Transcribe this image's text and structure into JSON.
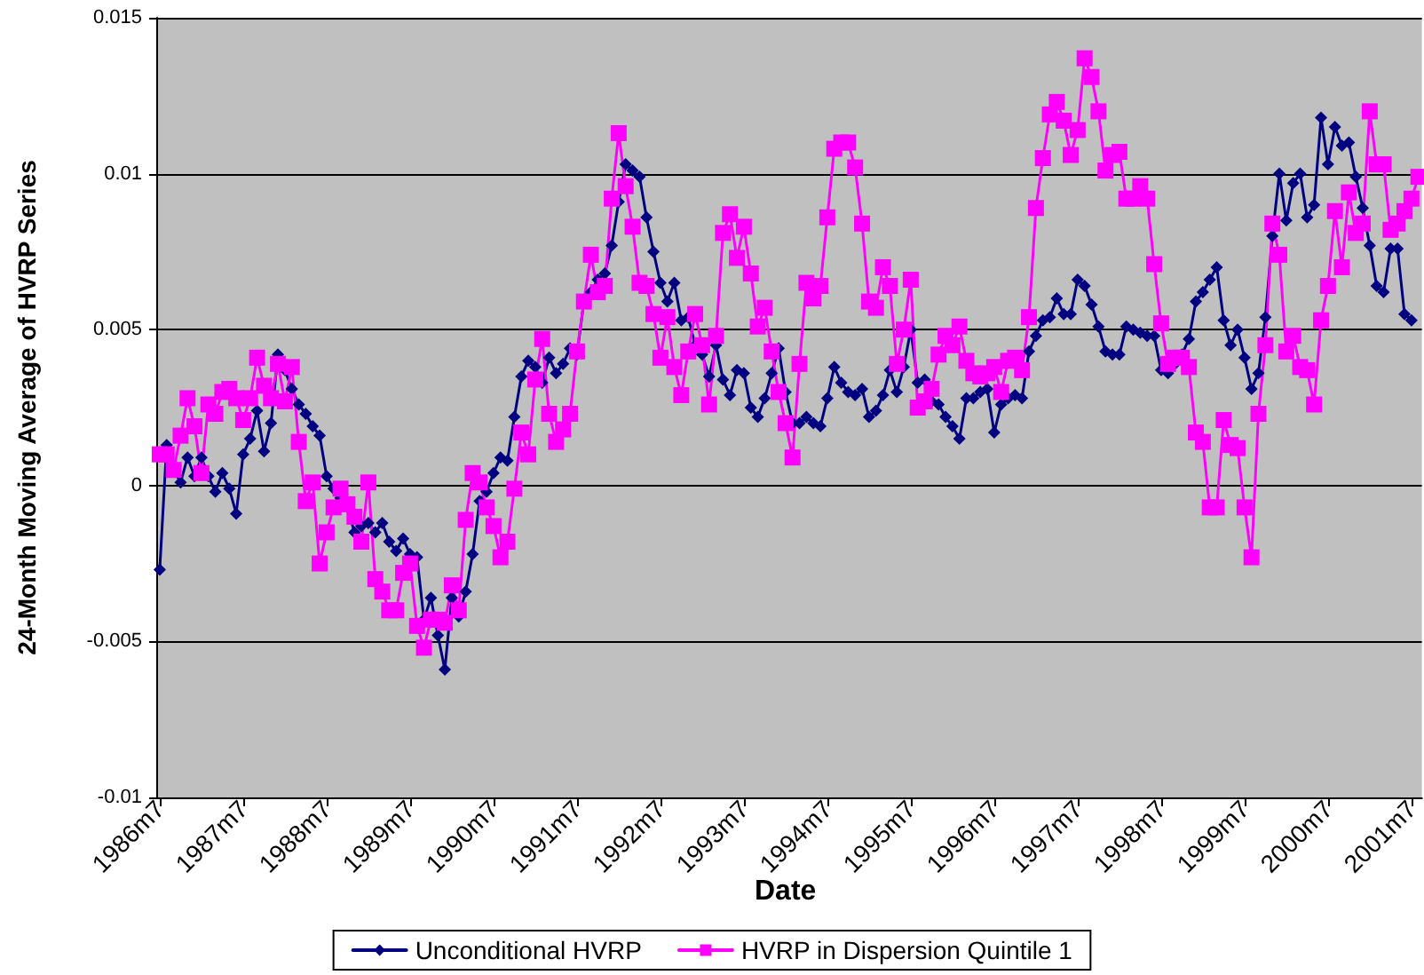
{
  "chart_data": {
    "type": "line",
    "xlabel": "Date",
    "ylabel": "24-Month Moving Average of HVRP Series",
    "categories": [
      "1986m7",
      null,
      null,
      null,
      null,
      null,
      null,
      null,
      null,
      null,
      null,
      null,
      "1987m7",
      null,
      null,
      null,
      null,
      null,
      null,
      null,
      null,
      null,
      null,
      null,
      "1988m7",
      null,
      null,
      null,
      null,
      null,
      null,
      null,
      null,
      null,
      null,
      null,
      "1989m7",
      null,
      null,
      null,
      null,
      null,
      null,
      null,
      null,
      null,
      null,
      null,
      "1990m7",
      null,
      null,
      null,
      null,
      null,
      null,
      null,
      null,
      null,
      null,
      null,
      "1991m7",
      null,
      null,
      null,
      null,
      null,
      null,
      null,
      null,
      null,
      null,
      null,
      "1992m7",
      null,
      null,
      null,
      null,
      null,
      null,
      null,
      null,
      null,
      null,
      null,
      "1993m7",
      null,
      null,
      null,
      null,
      null,
      null,
      null,
      null,
      null,
      null,
      null,
      "1994m7",
      null,
      null,
      null,
      null,
      null,
      null,
      null,
      null,
      null,
      null,
      null,
      "1995m7",
      null,
      null,
      null,
      null,
      null,
      null,
      null,
      null,
      null,
      null,
      null,
      "1996m7",
      null,
      null,
      null,
      null,
      null,
      null,
      null,
      null,
      null,
      null,
      null,
      "1997m7",
      null,
      null,
      null,
      null,
      null,
      null,
      null,
      null,
      null,
      null,
      null,
      "1998m7",
      null,
      null,
      null,
      null,
      null,
      null,
      null,
      null,
      null,
      null,
      null,
      "1999m7",
      null,
      null,
      null,
      null,
      null,
      null,
      null,
      null,
      null,
      null,
      null,
      "2000m7",
      null,
      null,
      null,
      null,
      null,
      null,
      null,
      null,
      null,
      null,
      null,
      "2001m7",
      null
    ],
    "ylim": [
      -0.01,
      0.015
    ],
    "yticks": [
      -0.01,
      -0.005,
      0,
      0.005,
      0.01,
      0.015
    ],
    "grid": "y",
    "legend": "bottom",
    "line_style": "solid",
    "series": [
      {
        "name": "Unconditional HVRP",
        "color": "#000080",
        "marker": "diamond",
        "values": [
          -0.0027,
          0.0013,
          0.0005,
          0.0001,
          0.0009,
          0.0003,
          0.0009,
          0.0003,
          -0.0002,
          0.0004,
          -0.0001,
          -0.0009,
          0.001,
          0.0015,
          0.0024,
          0.0011,
          0.002,
          0.0042,
          0.0037,
          0.0031,
          0.0026,
          0.0023,
          0.0019,
          0.0016,
          0.0003,
          -0.0001,
          -0.0004,
          -0.0007,
          -0.0015,
          -0.0013,
          -0.0012,
          -0.0015,
          -0.0012,
          -0.0018,
          -0.0021,
          -0.0017,
          -0.0022,
          -0.0023,
          -0.0043,
          -0.0036,
          -0.0048,
          -0.0059,
          -0.0036,
          -0.0042,
          -0.0034,
          -0.0022,
          -0.0005,
          -0.0002,
          0.0004,
          0.0009,
          0.0008,
          0.0022,
          0.0035,
          0.004,
          0.0038,
          0.0033,
          0.0041,
          0.0036,
          0.0039,
          0.0044,
          0.0042,
          0.0059,
          0.0062,
          0.0066,
          0.0068,
          0.0077,
          0.0091,
          0.0103,
          0.0101,
          0.0099,
          0.0086,
          0.0075,
          0.0065,
          0.0059,
          0.0065,
          0.0053,
          0.0054,
          0.0045,
          0.0042,
          0.0035,
          0.0045,
          0.0034,
          0.0029,
          0.0037,
          0.0036,
          0.0025,
          0.0022,
          0.0028,
          0.0036,
          0.0044,
          0.003,
          0.002,
          0.002,
          0.0022,
          0.002,
          0.0019,
          0.0028,
          0.0038,
          0.0033,
          0.003,
          0.0029,
          0.0031,
          0.0022,
          0.0024,
          0.0029,
          0.0037,
          0.003,
          0.0038,
          0.005,
          0.0033,
          0.0034,
          0.0027,
          0.0026,
          0.0022,
          0.0019,
          0.0015,
          0.0028,
          0.0028,
          0.003,
          0.0031,
          0.0017,
          0.0026,
          0.0028,
          0.0029,
          0.0028,
          0.0043,
          0.0048,
          0.0053,
          0.0054,
          0.006,
          0.0055,
          0.0055,
          0.0066,
          0.0064,
          0.0058,
          0.0051,
          0.0043,
          0.0042,
          0.0042,
          0.0051,
          0.005,
          0.0049,
          0.0048,
          0.0048,
          0.0037,
          0.0036,
          0.0039,
          0.0042,
          0.0047,
          0.0059,
          0.0062,
          0.0066,
          0.007,
          0.0053,
          0.0045,
          0.005,
          0.0041,
          0.0031,
          0.0036,
          0.0054,
          0.008,
          0.01,
          0.0085,
          0.0097,
          0.01,
          0.0086,
          0.009,
          0.0118,
          0.0103,
          0.0115,
          0.0109,
          0.011,
          0.0099,
          0.0089,
          0.0077,
          0.0064,
          0.0062,
          0.0076,
          0.0076,
          0.0055,
          0.0053,
          null
        ]
      },
      {
        "name": "HVRP in Dispersion Quintile 1",
        "color": "#ff00ff",
        "marker": "square",
        "values": [
          0.001,
          0.001,
          0.0005,
          0.0016,
          0.0028,
          0.0019,
          0.0004,
          0.0026,
          0.0023,
          0.003,
          0.0031,
          0.0028,
          0.0021,
          0.0028,
          0.0041,
          0.0032,
          0.0028,
          0.0039,
          0.0027,
          0.0038,
          0.0014,
          -0.0005,
          0.0001,
          -0.0025,
          -0.0015,
          -0.0007,
          -0.0001,
          -0.0006,
          -0.001,
          -0.0018,
          0.0001,
          -0.003,
          -0.0034,
          -0.004,
          -0.004,
          -0.0028,
          -0.0025,
          -0.0045,
          -0.0052,
          -0.0043,
          -0.0043,
          -0.0044,
          -0.0032,
          -0.004,
          -0.0011,
          0.0004,
          0.0001,
          -0.0007,
          -0.0013,
          -0.0023,
          -0.0018,
          -0.0001,
          0.0017,
          0.001,
          0.0034,
          0.0047,
          0.0023,
          0.0014,
          0.0018,
          0.0023,
          0.0043,
          0.0059,
          0.0074,
          0.0062,
          0.0064,
          0.0092,
          0.0113,
          0.0096,
          0.0083,
          0.0065,
          0.0064,
          0.0055,
          0.0041,
          0.0054,
          0.0038,
          0.0029,
          0.0043,
          0.0055,
          0.0045,
          0.0026,
          0.0048,
          0.0081,
          0.0087,
          0.0073,
          0.0083,
          0.0068,
          0.0051,
          0.0057,
          0.0043,
          0.003,
          0.002,
          0.0009,
          0.0039,
          0.0065,
          0.006,
          0.0064,
          0.0086,
          0.0108,
          0.011,
          0.011,
          0.0102,
          0.0084,
          0.0059,
          0.0057,
          0.007,
          0.0064,
          0.0039,
          0.005,
          0.0066,
          0.0025,
          0.0027,
          0.0031,
          0.0042,
          0.0048,
          0.0045,
          0.0051,
          0.004,
          0.0036,
          0.0035,
          0.0036,
          0.0038,
          0.003,
          0.004,
          0.0041,
          0.0037,
          0.0054,
          0.0089,
          0.0105,
          0.0119,
          0.0123,
          0.0117,
          0.0106,
          0.0114,
          0.0137,
          0.0131,
          0.012,
          0.0101,
          0.0106,
          0.0107,
          0.0092,
          0.0092,
          0.0096,
          0.0092,
          0.0071,
          0.0052,
          0.0039,
          0.0041,
          0.0041,
          0.0038,
          0.0017,
          0.0014,
          -0.0007,
          -0.0007,
          0.0021,
          0.0013,
          0.0012,
          -0.0007,
          -0.0023,
          0.0023,
          0.0045,
          0.0084,
          0.0074,
          0.0043,
          0.0048,
          0.0038,
          0.0037,
          0.0026,
          0.0053,
          0.0064,
          0.0088,
          0.007,
          0.0094,
          0.0081,
          0.0084,
          0.012,
          0.0103,
          0.0103,
          0.0082,
          0.0084,
          0.0088,
          0.0092,
          0.0099
        ]
      }
    ]
  }
}
